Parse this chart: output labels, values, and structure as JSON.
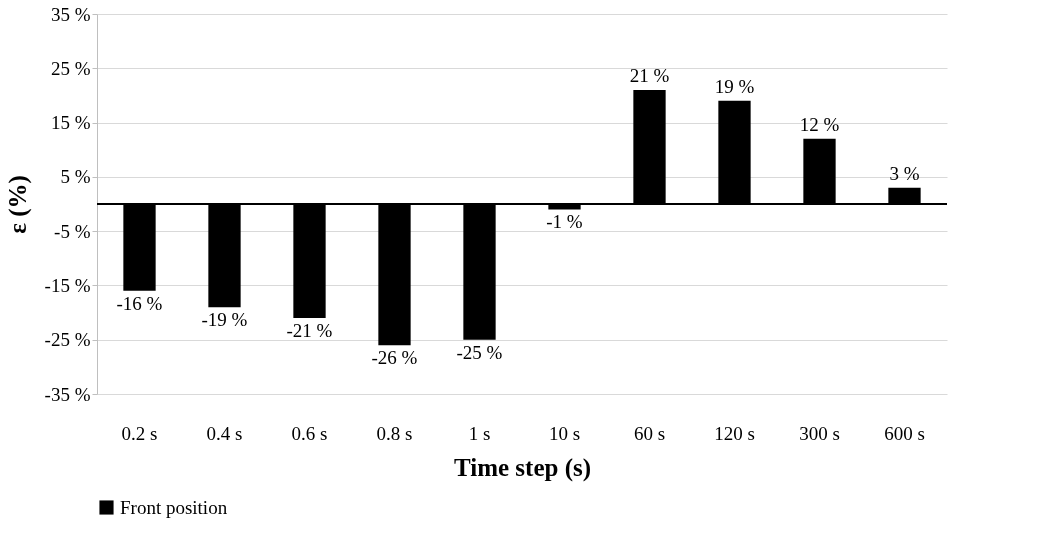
{
  "chart_data": {
    "type": "bar",
    "xlabel": "Time step (s)",
    "ylabel": "ε (%)",
    "categories": [
      "0.2 s",
      "0.4 s",
      "0.6 s",
      "0.8 s",
      "1 s",
      "10 s",
      "60 s",
      "120 s",
      "300 s",
      "600 s"
    ],
    "series": [
      {
        "name": "Front position",
        "color": "#000000",
        "values": [
          -16,
          -19,
          -21,
          -26,
          -25,
          -1,
          21,
          19,
          12,
          3
        ]
      }
    ],
    "value_labels": [
      "-16 %",
      "-19 %",
      "-21 %",
      "-26 %",
      "-25 %",
      "-1 %",
      "21 %",
      "19 %",
      "12 %",
      "3 %"
    ],
    "ylim": [
      -35,
      35
    ],
    "yticks": [
      {
        "value": -35,
        "label": "-35 %"
      },
      {
        "value": -25,
        "label": "-25 %"
      },
      {
        "value": -15,
        "label": "-15 %"
      },
      {
        "value": -5,
        "label": "-5 %"
      },
      {
        "value": 5,
        "label": "5 %"
      },
      {
        "value": 15,
        "label": "15 %"
      },
      {
        "value": 25,
        "label": "25 %"
      },
      {
        "value": 35,
        "label": "35 %"
      }
    ],
    "grid": "y",
    "legend": "bottom"
  }
}
